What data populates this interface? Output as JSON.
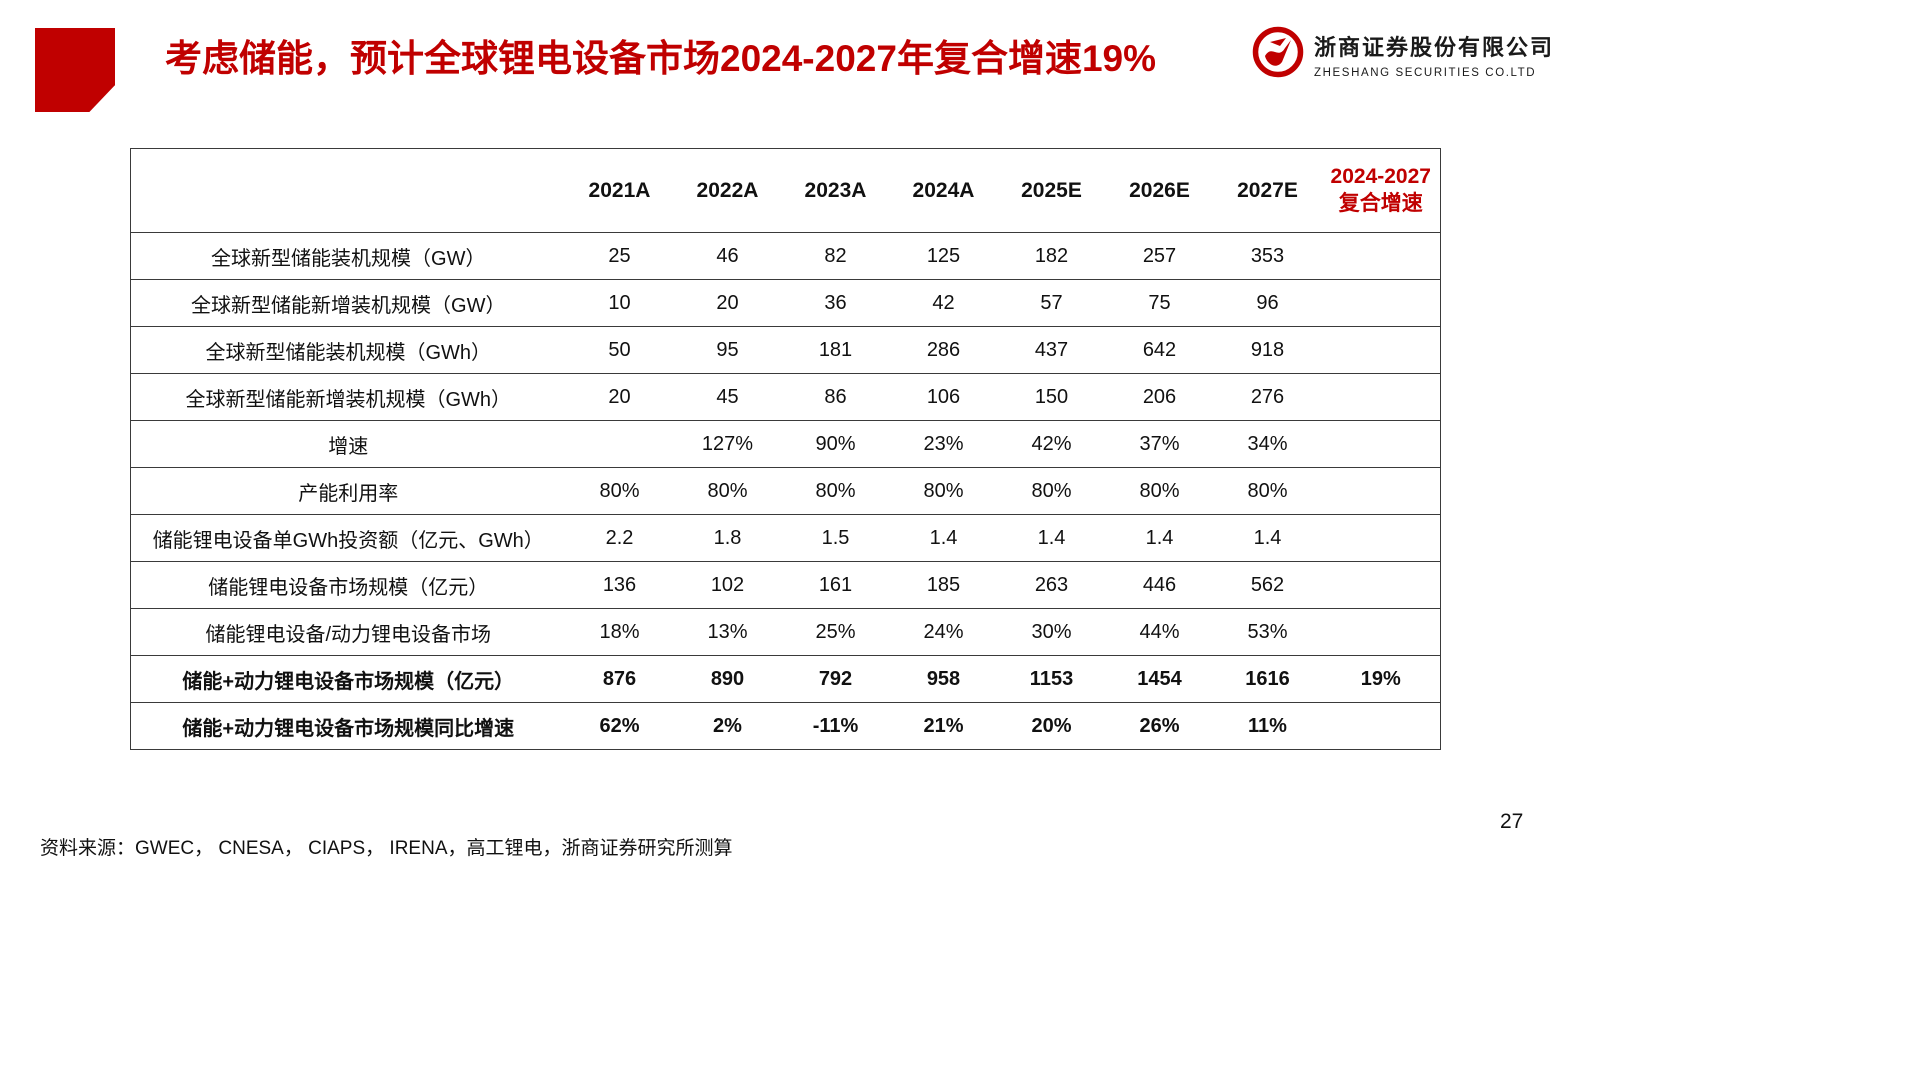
{
  "slide": {
    "title": "考虑储能，预计全球锂电设备市场2024-2027年复合增速19%",
    "source": "资料来源：GWEC， CNESA， CIAPS， IRENA，高工锂电，浙商证券研究所测算",
    "page_number": "27"
  },
  "logo": {
    "company_cn": "浙商证券股份有限公司",
    "company_en": "ZHESHANG SECURITIES CO.LTD",
    "mark": "zheshang-emblem"
  },
  "colors": {
    "accent_red": "#c00000",
    "table_border": "#3a3a3a",
    "text": "#111111"
  },
  "table": {
    "header": [
      "",
      "2021A",
      "2022A",
      "2023A",
      "2024A",
      "2025E",
      "2026E",
      "2027E",
      "2024-2027复合增速"
    ],
    "rows": [
      {
        "label": "全球新型储能装机规模（GW）",
        "bold": false,
        "values": [
          "25",
          "46",
          "82",
          "125",
          "182",
          "257",
          "353",
          ""
        ]
      },
      {
        "label": "全球新型储能新增装机规模（GW）",
        "bold": false,
        "values": [
          "10",
          "20",
          "36",
          "42",
          "57",
          "75",
          "96",
          ""
        ]
      },
      {
        "label": "全球新型储能装机规模（GWh）",
        "bold": false,
        "values": [
          "50",
          "95",
          "181",
          "286",
          "437",
          "642",
          "918",
          ""
        ]
      },
      {
        "label": "全球新型储能新增装机规模（GWh）",
        "bold": false,
        "values": [
          "20",
          "45",
          "86",
          "106",
          "150",
          "206",
          "276",
          ""
        ]
      },
      {
        "label": "增速",
        "bold": false,
        "values": [
          "",
          "127%",
          "90%",
          "23%",
          "42%",
          "37%",
          "34%",
          ""
        ]
      },
      {
        "label": "产能利用率",
        "bold": false,
        "values": [
          "80%",
          "80%",
          "80%",
          "80%",
          "80%",
          "80%",
          "80%",
          ""
        ]
      },
      {
        "label": "储能锂电设备单GWh投资额（亿元、GWh）",
        "bold": false,
        "values": [
          "2.2",
          "1.8",
          "1.5",
          "1.4",
          "1.4",
          "1.4",
          "1.4",
          ""
        ]
      },
      {
        "label": "储能锂电设备市场规模（亿元）",
        "bold": false,
        "values": [
          "136",
          "102",
          "161",
          "185",
          "263",
          "446",
          "562",
          ""
        ]
      },
      {
        "label": "储能锂电设备/动力锂电设备市场",
        "bold": false,
        "values": [
          "18%",
          "13%",
          "25%",
          "24%",
          "30%",
          "44%",
          "53%",
          ""
        ]
      },
      {
        "label": "储能+动力锂电设备市场规模（亿元）",
        "bold": true,
        "values": [
          "876",
          "890",
          "792",
          "958",
          "1153",
          "1454",
          "1616",
          "19%"
        ]
      },
      {
        "label": "储能+动力锂电设备市场规模同比增速",
        "bold": true,
        "values": [
          "62%",
          "2%",
          "-11%",
          "21%",
          "20%",
          "26%",
          "11%",
          ""
        ]
      }
    ]
  }
}
